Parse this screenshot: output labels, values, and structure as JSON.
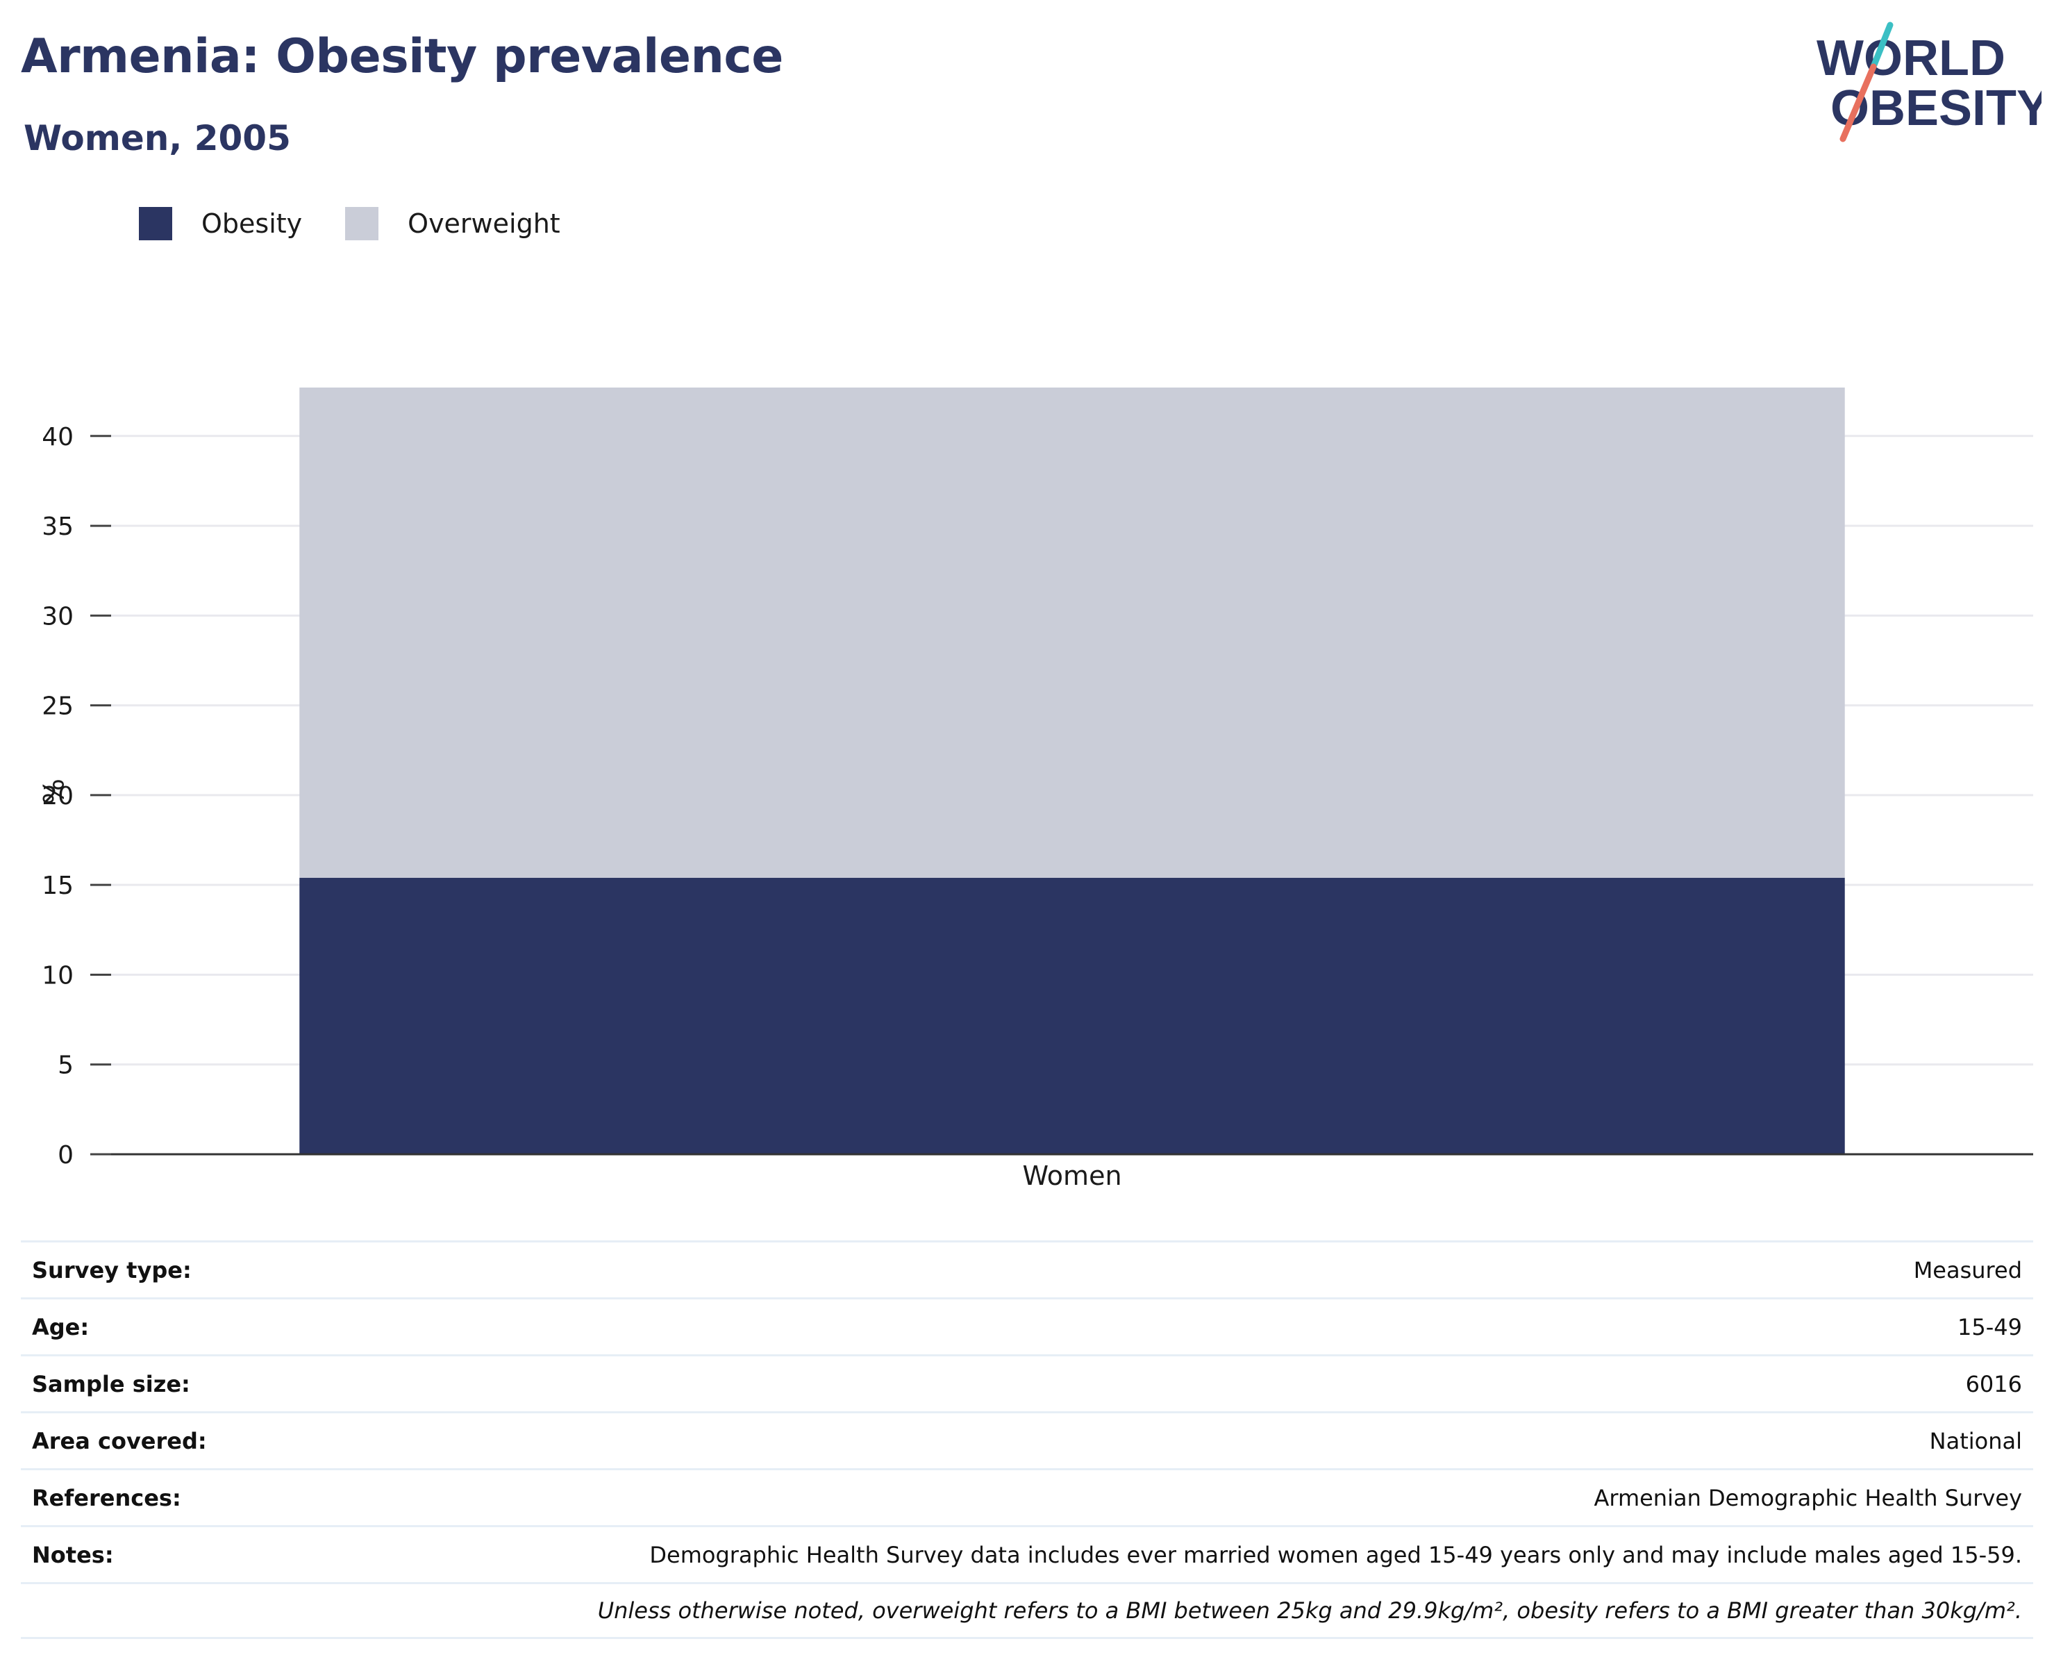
{
  "header": {
    "title": "Armenia: Obesity prevalence",
    "subtitle": "Women, 2005"
  },
  "logo": {
    "line1": "WORLD",
    "line2": "OBESITY",
    "colors": {
      "text": "#2b3562",
      "slash_top": "#3bbfc4",
      "slash_bottom": "#e8705e"
    }
  },
  "legend": [
    {
      "label": "Obesity",
      "color": "#2b3562"
    },
    {
      "label": "Overweight",
      "color": "#cacdd8"
    }
  ],
  "chart_data": {
    "type": "bar",
    "stacked": true,
    "categories": [
      "Women"
    ],
    "series": [
      {
        "name": "Obesity",
        "values": [
          15.4
        ],
        "color": "#2b3562"
      },
      {
        "name": "Overweight",
        "values": [
          27.3
        ],
        "color": "#cacdd8"
      }
    ],
    "xlabel": "",
    "ylabel": "%",
    "ylim": [
      0,
      42.7
    ],
    "yticks": [
      0,
      5,
      10,
      15,
      20,
      25,
      30,
      35,
      40
    ],
    "grid": true,
    "legend_position": "top-left"
  },
  "info": {
    "rows": [
      {
        "label": "Survey type:",
        "value": "Measured"
      },
      {
        "label": "Age:",
        "value": "15-49"
      },
      {
        "label": "Sample size:",
        "value": "6016"
      },
      {
        "label": "Area covered:",
        "value": "National"
      },
      {
        "label": "References:",
        "value": "Armenian Demographic Health Survey"
      },
      {
        "label": "Notes:",
        "value": "Demographic Health Survey data includes ever married women aged 15-49 years only and may include males aged 15-59."
      }
    ],
    "footnote": "Unless otherwise noted, overweight refers to a BMI between 25kg and 29.9kg/m², obesity refers to a BMI greater than 30kg/m²."
  }
}
